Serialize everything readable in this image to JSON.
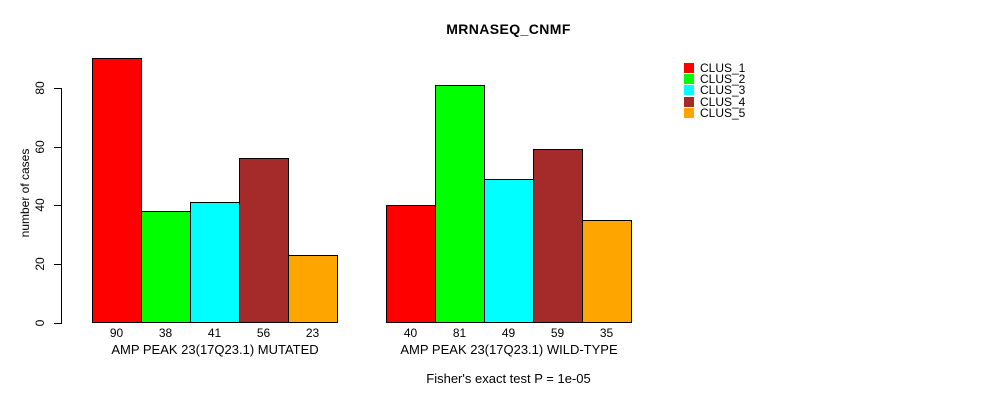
{
  "chart_data": {
    "type": "bar",
    "title": "MRNASEQ_CNMF",
    "ylabel": "number of cases",
    "xlabel": "",
    "ylim": [
      0,
      90
    ],
    "yticks": [
      0,
      20,
      40,
      60,
      80
    ],
    "grid": false,
    "legend_position": "right",
    "categories": [
      "AMP PEAK 23(17Q23.1) MUTATED",
      "AMP PEAK 23(17Q23.1) WILD-TYPE"
    ],
    "series": [
      {
        "name": "CLUS_1",
        "color": "#FF0000",
        "values": [
          90,
          40
        ]
      },
      {
        "name": "CLUS_2",
        "color": "#00FF00",
        "values": [
          38,
          81
        ]
      },
      {
        "name": "CLUS_3",
        "color": "#00FFFF",
        "values": [
          41,
          49
        ]
      },
      {
        "name": "CLUS_4",
        "color": "#A52A2A",
        "values": [
          56,
          59
        ]
      },
      {
        "name": "CLUS_5",
        "color": "#FFA500",
        "values": [
          23,
          35
        ]
      }
    ],
    "bar_value_labels": [
      [
        90,
        38,
        41,
        56,
        23
      ],
      [
        40,
        81,
        49,
        59,
        35
      ]
    ],
    "annotation": "Fisher's exact test P = 1e-05"
  }
}
